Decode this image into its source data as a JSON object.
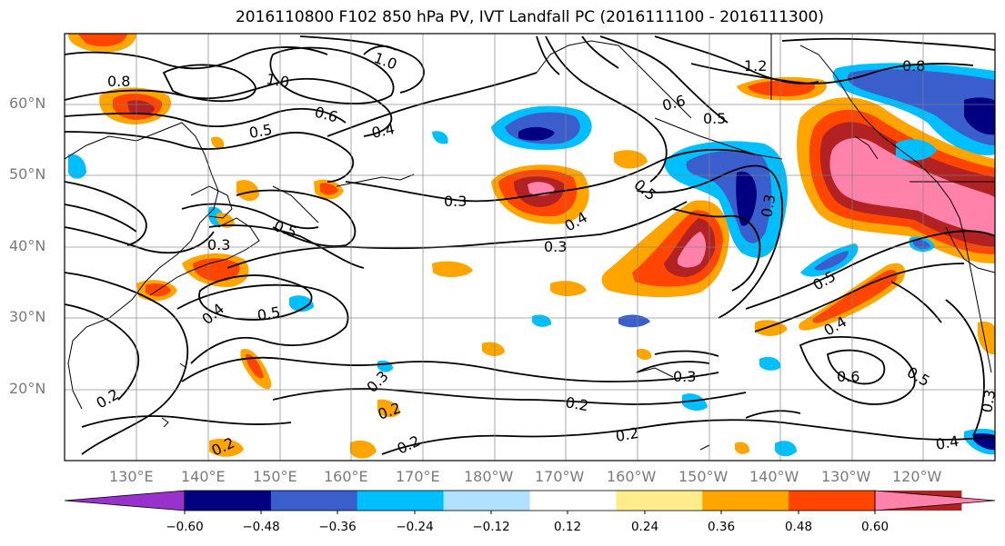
{
  "title": "2016110800 F102 850 hPa PV, IVT Landfall PC (2016111100 - 2016111300)",
  "lat_labels": [
    "60°N",
    "50°N",
    "40°N",
    "30°N",
    "20°N"
  ],
  "lon_labels": [
    "130°E",
    "140°E",
    "150°E",
    "160°E",
    "170°E",
    "180°W",
    "170°W",
    "160°W",
    "150°W",
    "140°W",
    "130°W",
    "120°W"
  ],
  "contour_labels": [
    "0.8",
    "1.0",
    "1.0",
    "1.2",
    "0.8",
    "0.6",
    "0.5",
    "0.6",
    "0.5",
    "0.4",
    "0.5",
    "0.3",
    "0.3",
    "0.4",
    "0.5",
    "0.3",
    "0.3",
    "0.4",
    "0.5",
    "0.5",
    "0.4",
    "0.6",
    "0.5",
    "0.3",
    "0.3",
    "0.2",
    "0.2",
    "0.2",
    "0.2",
    "0.2",
    "0.2",
    "0.3",
    "0.4"
  ],
  "colorbar": {
    "ticks": [
      "−0.60",
      "−0.48",
      "−0.36",
      "−0.24",
      "−0.12",
      "0.12",
      "0.24",
      "0.36",
      "0.48",
      "0.60"
    ],
    "colors": [
      "#9932cc",
      "#000080",
      "#3a5fcd",
      "#00bfff",
      "#b0e2ff",
      "#ffffff",
      "#ffec8b",
      "#ffa500",
      "#ff4500",
      "#b22222",
      "#ff82ab"
    ]
  },
  "colors": {
    "contour": "#000000",
    "grid": "#808080",
    "coast": "#000000"
  }
}
